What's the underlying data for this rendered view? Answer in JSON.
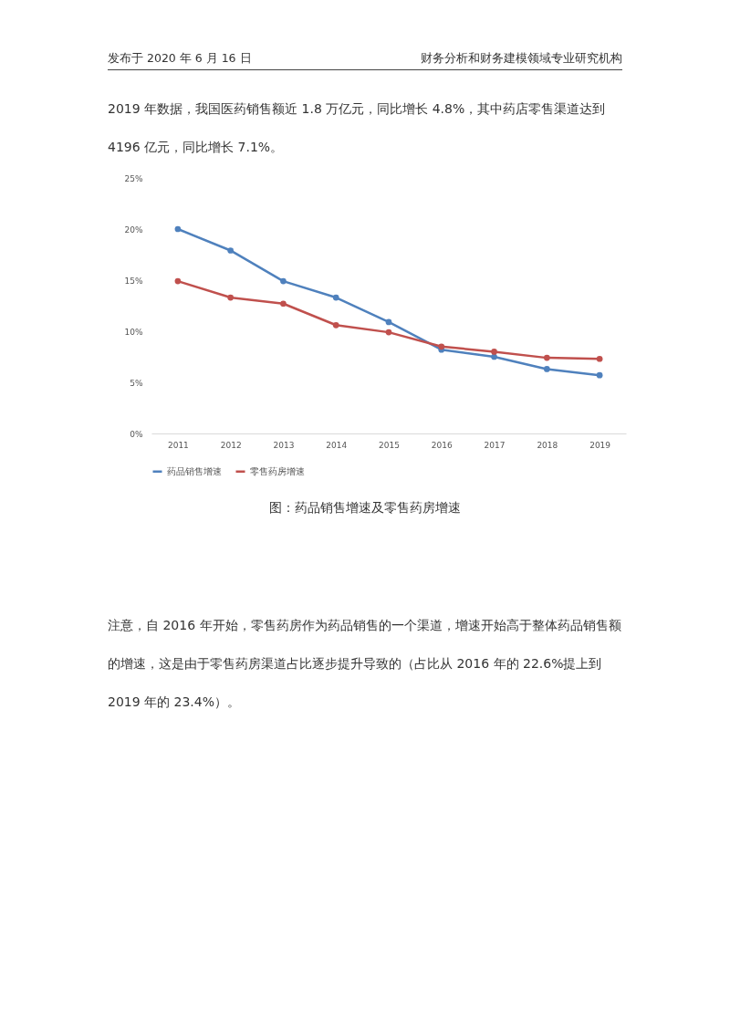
{
  "chart_data": {
    "type": "line",
    "title": "图：药品销售增速及零售药房增速",
    "annotations": [
      "发布于 2020 年 6 月 16 日",
      "财务分析和财务建模领域专业研究机构",
      "2019 年数据，我国医药销售额近 1.8 万亿元，同比增长 4.8%，其中药店零售渠道达到 4196 亿元，同比增长 7.1%。",
      "注意，自 2016 年开始，零售药房作为药品销售的一个渠道，增速开始高于整体药品销售额的增速，这是由于零售药房渠道占比逐步提升导致的（占比从 2016 年的 22.6%提上到 2019 年的 23.4%）。"
    ],
    "categories": [
      "2011",
      "2012",
      "2013",
      "2014",
      "2015",
      "2016",
      "2017",
      "2018",
      "2019"
    ],
    "series": [
      {
        "name": "药品销售增速",
        "color": "#4f81bd",
        "values": [
          20,
          17.9,
          14.9,
          13.3,
          10.9,
          8.2,
          7.5,
          6.3,
          5.7
        ]
      },
      {
        "name": "零售药房增速",
        "color": "#c0504d",
        "values": [
          14.9,
          13.3,
          12.7,
          10.6,
          9.9,
          8.5,
          8.0,
          7.4,
          7.3
        ]
      }
    ],
    "ylim": [
      0,
      25
    ],
    "yticks": [
      {
        "value": 0,
        "label": "0%"
      },
      {
        "value": 5,
        "label": "5%"
      },
      {
        "value": 10,
        "label": "10%"
      },
      {
        "value": 15,
        "label": "15%"
      },
      {
        "value": 20,
        "label": "20%"
      },
      {
        "value": 25,
        "label": "25%"
      }
    ],
    "grid": false,
    "legend": "bottom",
    "marker": "circle",
    "line_style": "solid"
  }
}
